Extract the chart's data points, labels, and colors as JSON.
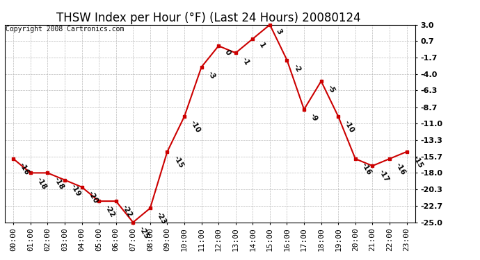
{
  "title": "THSW Index per Hour (°F) (Last 24 Hours) 20080124",
  "copyright": "Copyright 2008 Cartronics.com",
  "hours": [
    "00:00",
    "01:00",
    "02:00",
    "03:00",
    "04:00",
    "05:00",
    "06:00",
    "07:00",
    "08:00",
    "09:00",
    "10:00",
    "11:00",
    "12:00",
    "13:00",
    "14:00",
    "15:00",
    "16:00",
    "17:00",
    "18:00",
    "19:00",
    "20:00",
    "21:00",
    "22:00",
    "23:00"
  ],
  "values": [
    -16,
    -18,
    -18,
    -19,
    -20,
    -22,
    -22,
    -25,
    -23,
    -15,
    -10,
    -3,
    0,
    -1,
    1,
    3,
    -2,
    -9,
    -5,
    -10,
    -16,
    -17,
    -16,
    -15
  ],
  "ylim": [
    -25.0,
    3.0
  ],
  "yticks": [
    3.0,
    0.7,
    -1.7,
    -4.0,
    -6.3,
    -8.7,
    -11.0,
    -13.3,
    -15.7,
    -18.0,
    -20.3,
    -22.7,
    -25.0
  ],
  "line_color": "#cc0000",
  "marker_color": "#cc0000",
  "bg_color": "#ffffff",
  "grid_color": "#bbbbbb",
  "title_fontsize": 12,
  "label_fontsize": 8,
  "annotation_fontsize": 7.5,
  "copyright_fontsize": 7
}
